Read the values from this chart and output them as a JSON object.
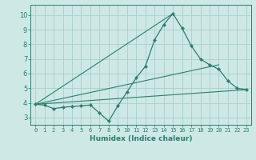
{
  "background_color": "#cde8e5",
  "grid_color": "#aacfcc",
  "line_color": "#2e7d70",
  "xlabel": "Humidex (Indice chaleur)",
  "xlim": [
    -0.5,
    23.5
  ],
  "ylim": [
    2.5,
    10.7
  ],
  "xticks": [
    0,
    1,
    2,
    3,
    4,
    5,
    6,
    7,
    8,
    9,
    10,
    11,
    12,
    13,
    14,
    15,
    16,
    17,
    18,
    19,
    20,
    21,
    22,
    23
  ],
  "yticks": [
    3,
    4,
    5,
    6,
    7,
    8,
    9,
    10
  ],
  "main_line": {
    "x": [
      0,
      1,
      2,
      3,
      4,
      5,
      6,
      7,
      8,
      9,
      10,
      11,
      12,
      13,
      14,
      15,
      16,
      17,
      18,
      19,
      20,
      21,
      22,
      23
    ],
    "y": [
      3.9,
      3.85,
      3.6,
      3.7,
      3.75,
      3.8,
      3.85,
      3.3,
      2.75,
      3.8,
      4.75,
      5.7,
      6.5,
      8.3,
      9.35,
      10.1,
      9.1,
      7.9,
      7.0,
      6.6,
      6.3,
      5.5,
      5.0,
      4.9
    ]
  },
  "extra_lines": [
    {
      "x": [
        0,
        23
      ],
      "y": [
        3.9,
        4.9
      ]
    },
    {
      "x": [
        0,
        20
      ],
      "y": [
        3.9,
        6.6
      ]
    },
    {
      "x": [
        0,
        15
      ],
      "y": [
        3.9,
        10.1
      ]
    }
  ]
}
